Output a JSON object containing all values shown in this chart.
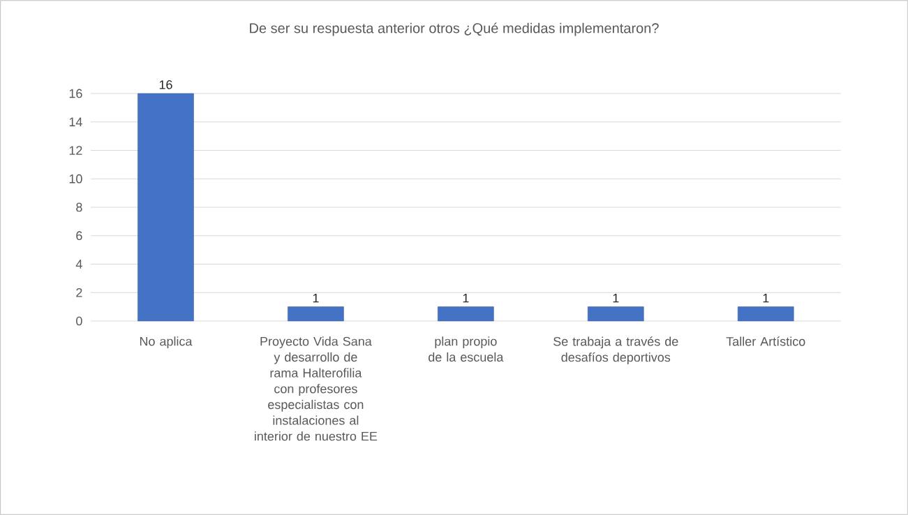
{
  "chart_data": {
    "type": "bar",
    "title": "De ser su respuesta anterior otros ¿Qué medidas implementaron?",
    "categories": [
      "No aplica",
      "Proyecto Vida Sana y desarrollo de rama Halterofilia con profesores especialistas con instalaciones al interior de nuestro EE",
      "plan propio de la escuela",
      "Se trabaja a través de desafíos deportivos",
      "Taller Artístico"
    ],
    "values": [
      16,
      1,
      1,
      1,
      1
    ],
    "color": "#4472c4",
    "ylim": [
      0,
      16
    ],
    "yticks": [
      0,
      2,
      4,
      6,
      8,
      10,
      12,
      14,
      16
    ],
    "grid": "y",
    "data_labels": true
  }
}
